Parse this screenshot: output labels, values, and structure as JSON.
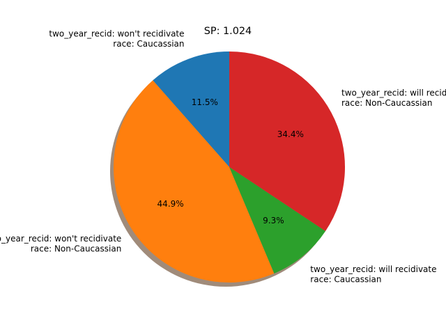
{
  "chart_data": {
    "type": "pie",
    "title": "SP: 1.024",
    "slices": [
      {
        "label_lines": [
          "two_year_recid: won't recidivate",
          "race: Caucassian"
        ],
        "value": 11.5,
        "pct_label": "11.5%",
        "color": "#1f77b4"
      },
      {
        "label_lines": [
          "two_year_recid: won't recidivate",
          "race: Non-Caucassian"
        ],
        "value": 44.9,
        "pct_label": "44.9%",
        "color": "#ff7f0e"
      },
      {
        "label_lines": [
          "two_year_recid: will recidivate",
          "race: Caucassian"
        ],
        "value": 9.3,
        "pct_label": "9.3%",
        "color": "#2ca02c"
      },
      {
        "label_lines": [
          "two_year_recid: will recidivate",
          "race: Non-Caucassian"
        ],
        "value": 34.4,
        "pct_label": "34.4%",
        "color": "#d62728"
      }
    ],
    "start_angle": 90,
    "counterclockwise": true,
    "shadow": true,
    "shadow_color": "#a08b7a"
  }
}
